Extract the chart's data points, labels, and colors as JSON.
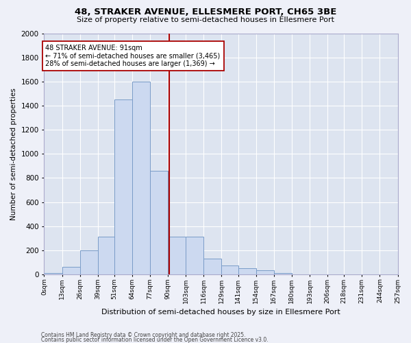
{
  "title1": "48, STRAKER AVENUE, ELLESMERE PORT, CH65 3BE",
  "title2": "Size of property relative to semi-detached houses in Ellesmere Port",
  "xlabel": "Distribution of semi-detached houses by size in Ellesmere Port",
  "ylabel": "Number of semi-detached properties",
  "bar_color": "#ccd9f0",
  "bar_edge_color": "#7a9cc8",
  "plot_bg_color": "#dde4f0",
  "fig_bg_color": "#eef0f8",
  "grid_color": "#ffffff",
  "vline_value": 91,
  "vline_color": "#aa0000",
  "annotation_title": "48 STRAKER AVENUE: 91sqm",
  "annotation_line1": "← 71% of semi-detached houses are smaller (3,465)",
  "annotation_line2": "28% of semi-detached houses are larger (1,369) →",
  "bin_edges": [
    0,
    13,
    26,
    39,
    51,
    64,
    77,
    90,
    103,
    116,
    129,
    141,
    154,
    167,
    180,
    193,
    206,
    218,
    231,
    244,
    257
  ],
  "bin_labels": [
    "0sqm",
    "13sqm",
    "26sqm",
    "39sqm",
    "51sqm",
    "64sqm",
    "77sqm",
    "90sqm",
    "103sqm",
    "116sqm",
    "129sqm",
    "141sqm",
    "154sqm",
    "167sqm",
    "180sqm",
    "193sqm",
    "206sqm",
    "218sqm",
    "231sqm",
    "244sqm",
    "257sqm"
  ],
  "counts": [
    10,
    60,
    200,
    310,
    1450,
    1600,
    860,
    310,
    310,
    130,
    70,
    50,
    30,
    10,
    0,
    0,
    0,
    0,
    0,
    0
  ],
  "ylim": [
    0,
    2000
  ],
  "yticks": [
    0,
    200,
    400,
    600,
    800,
    1000,
    1200,
    1400,
    1600,
    1800,
    2000
  ],
  "footnote1": "Contains HM Land Registry data © Crown copyright and database right 2025.",
  "footnote2": "Contains public sector information licensed under the Open Government Licence v3.0."
}
